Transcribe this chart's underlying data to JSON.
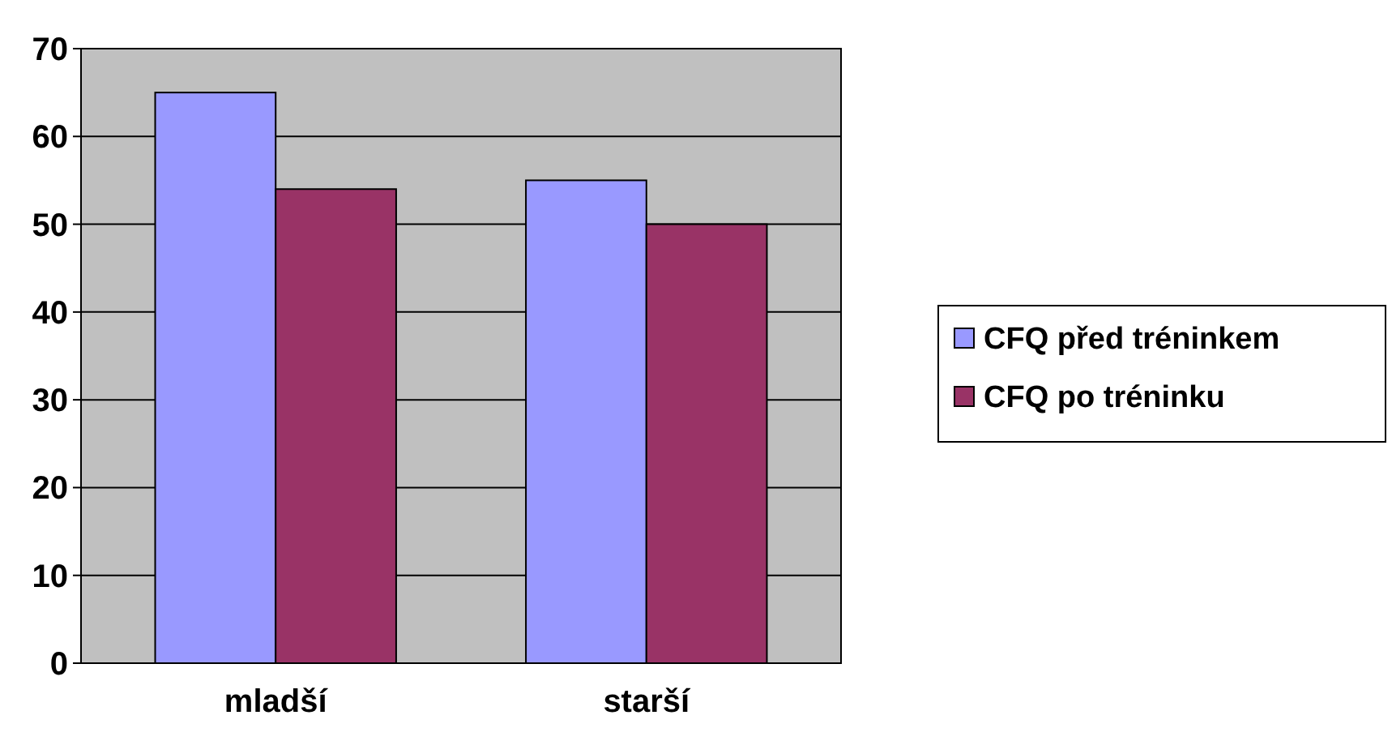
{
  "chart_data": {
    "type": "bar",
    "categories": [
      "mladší",
      "starší"
    ],
    "series": [
      {
        "name": "CFQ před tréninkem",
        "color": "#9999ff",
        "values": [
          65,
          55
        ]
      },
      {
        "name": "CFQ po tréninku",
        "color": "#993366",
        "values": [
          54,
          50
        ]
      }
    ],
    "ylim": [
      0,
      70
    ],
    "yticks": [
      0,
      10,
      20,
      30,
      40,
      50,
      60,
      70
    ],
    "grid": "y",
    "legend": "right"
  }
}
